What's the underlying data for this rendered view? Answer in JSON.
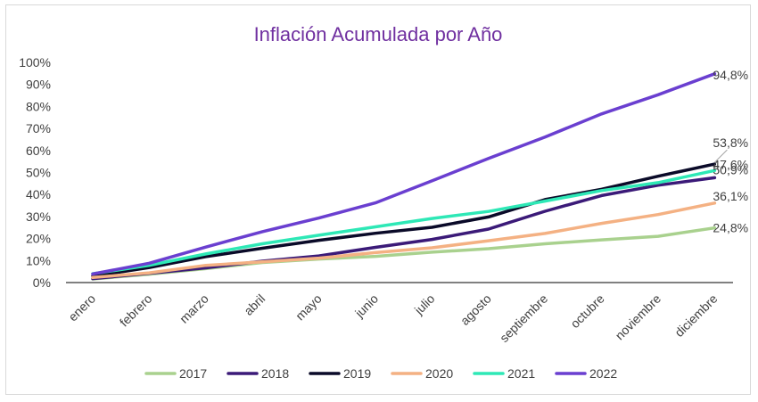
{
  "chart_data": {
    "type": "line",
    "title": "Inflación Acumulada por Año",
    "xlabel": "",
    "ylabel": "",
    "ylim": [
      0,
      100
    ],
    "yticks": [
      "0%",
      "10%",
      "20%",
      "30%",
      "40%",
      "50%",
      "60%",
      "70%",
      "80%",
      "90%",
      "100%"
    ],
    "categories": [
      "enero",
      "febrero",
      "marzo",
      "abril",
      "mayo",
      "junio",
      "julio",
      "agosto",
      "septiembre",
      "octubre",
      "noviembre",
      "diciembre"
    ],
    "legend_position": "bottom",
    "series": [
      {
        "name": "2017",
        "color": "#a9d18e",
        "values": [
          1.6,
          3.8,
          6.3,
          9.1,
          10.7,
          11.9,
          13.8,
          15.4,
          17.6,
          19.4,
          21.0,
          24.8
        ],
        "end_label": "24,8%"
      },
      {
        "name": "2018",
        "color": "#3b1a78",
        "values": [
          1.8,
          4.2,
          6.7,
          9.7,
          12.1,
          16.0,
          19.6,
          24.3,
          32.4,
          39.5,
          44.2,
          47.6
        ],
        "end_label": "47,6%"
      },
      {
        "name": "2019",
        "color": "#0a0a28",
        "values": [
          2.9,
          6.8,
          11.8,
          15.6,
          19.2,
          22.4,
          25.1,
          29.8,
          37.7,
          42.4,
          48.3,
          53.8
        ],
        "end_label": "53,8%"
      },
      {
        "name": "2020",
        "color": "#f4b183",
        "values": [
          2.3,
          4.4,
          7.8,
          9.4,
          11.1,
          13.6,
          15.8,
          19.0,
          22.3,
          26.9,
          30.9,
          36.1
        ],
        "end_label": "36,1%"
      },
      {
        "name": "2021",
        "color": "#2ee8b6",
        "values": [
          4.0,
          7.8,
          13.0,
          17.6,
          21.5,
          25.3,
          29.1,
          32.3,
          37.0,
          41.8,
          45.4,
          50.9
        ],
        "end_label": "50,9%"
      },
      {
        "name": "2022",
        "color": "#6a3fd0",
        "values": [
          3.9,
          8.8,
          16.1,
          23.1,
          29.3,
          36.2,
          46.2,
          56.4,
          66.1,
          76.6,
          85.3,
          94.8
        ],
        "end_label": "94,8%"
      }
    ]
  }
}
